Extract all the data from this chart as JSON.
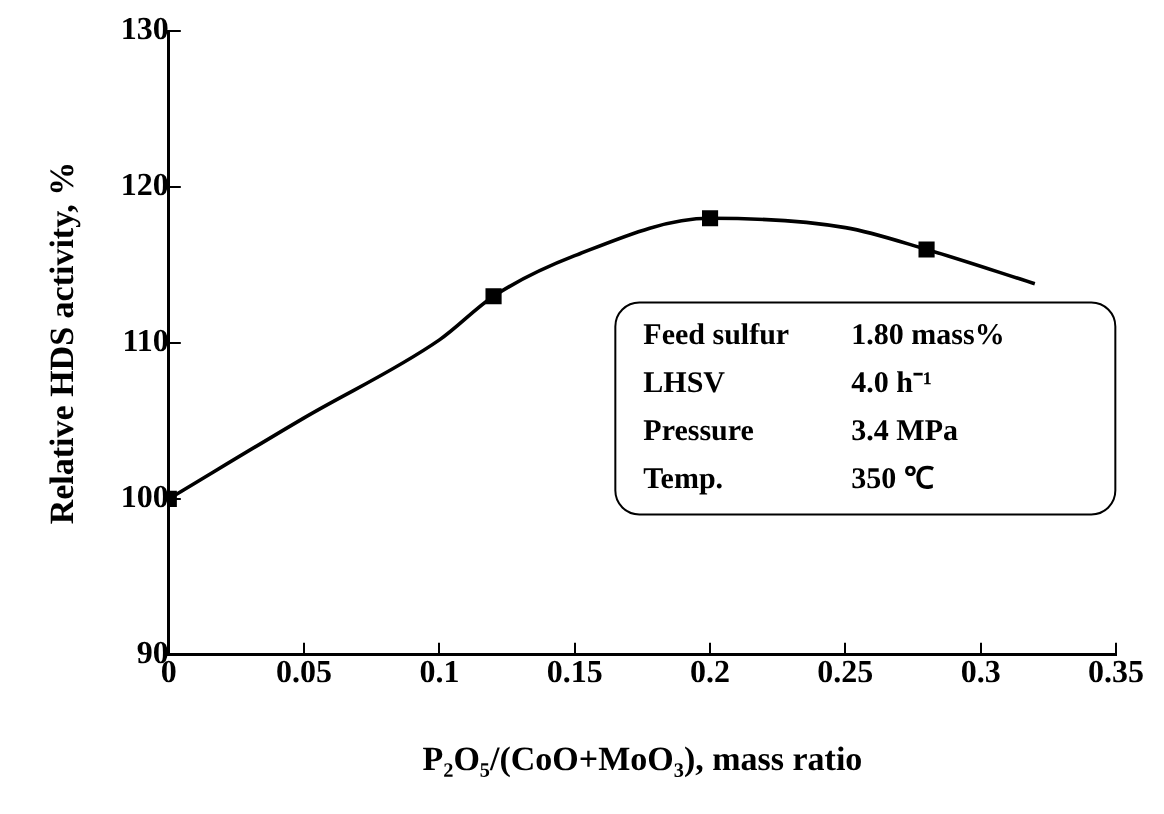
{
  "chart_data": {
    "type": "line",
    "xlabel": "P₂O₅/(CoO+MoO₃), mass ratio",
    "ylabel": "Relative HDS activity, %",
    "xlim": [
      0,
      0.35
    ],
    "xticks": [
      0,
      0.05,
      0.1,
      0.15,
      0.2,
      0.25,
      0.3,
      0.35
    ],
    "ylim": [
      90,
      130
    ],
    "yticks": [
      90,
      100,
      110,
      120,
      130
    ],
    "grid": false,
    "legend": false,
    "series": [
      {
        "type": "line",
        "color": "#000000",
        "marker": "none",
        "line_style": "solid",
        "x": [
          0,
          0.05,
          0.1,
          0.12,
          0.15,
          0.2,
          0.25,
          0.28,
          0.32
        ],
        "values": [
          100,
          105.2,
          110.2,
          113,
          115.6,
          118,
          117.4,
          116,
          113.8
        ]
      },
      {
        "type": "scatter",
        "color": "#000000",
        "marker": "square",
        "x": [
          0,
          0.12,
          0.2,
          0.28
        ],
        "values": [
          100,
          113,
          118,
          116
        ]
      }
    ],
    "annotations": [
      "Feed sulfur   1.80 mass%",
      "LHSV   4.0 h⁻¹",
      "Pressure   3.4 MPa",
      "Temp.   350 ℃"
    ]
  }
}
